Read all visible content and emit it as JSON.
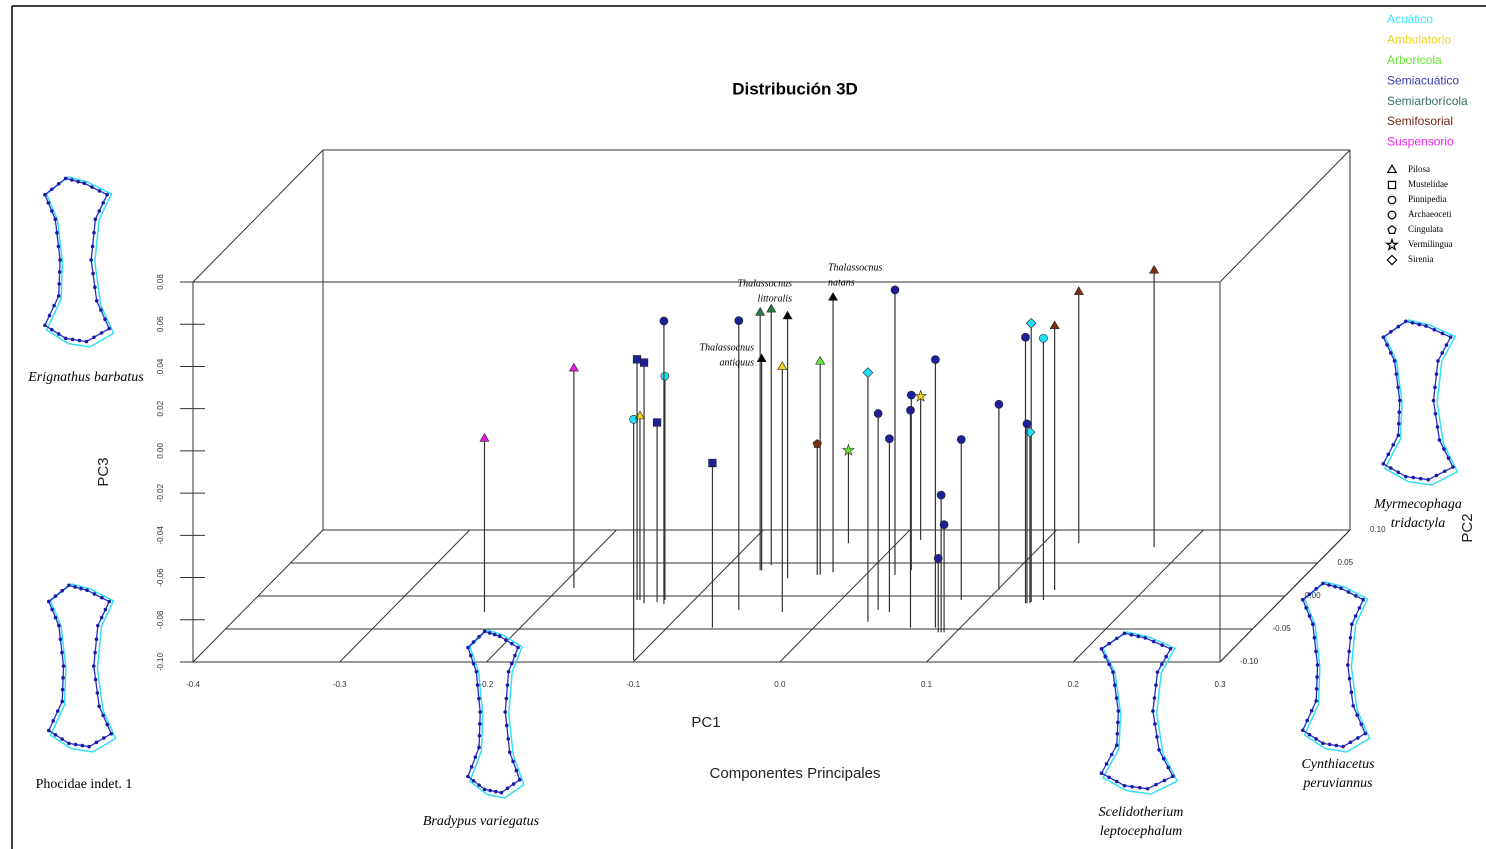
{
  "chart_data": {
    "type": "scatter3d",
    "title": "Distribución 3D",
    "x_label": "PC1",
    "y_label": "PC2",
    "z_label": "PC3",
    "caption": "Componentes Principales",
    "xlim": [
      -0.4,
      0.3
    ],
    "ylim": [
      -0.1,
      0.1
    ],
    "zlim": [
      -0.1,
      0.08
    ],
    "xticks": [
      -0.4,
      -0.3,
      -0.2,
      -0.1,
      {
        "value": 0,
        "label": "0.0"
      },
      0.1,
      0.2,
      0.3
    ],
    "yticks": [
      {
        "value": -0.1,
        "label": "-0.10"
      },
      -0.05,
      {
        "value": 0,
        "label": "0.00"
      },
      0.05,
      {
        "value": 0.1,
        "label": "0.10"
      }
    ],
    "zticks": [
      {
        "value": -0.1,
        "label": "-0.10"
      },
      -0.08,
      -0.06,
      -0.04,
      -0.02,
      {
        "value": 0,
        "label": "0.00"
      },
      0.02,
      0.04,
      0.06,
      0.08
    ],
    "series": [
      {
        "name": "Acuático",
        "color": "#22e0f5",
        "x": [
          -0.12,
          -0.101,
          0.138,
          0.033,
          0.131,
          0.131
        ],
        "y": [
          -0.006,
          -0.097,
          -0.006,
          -0.039,
          -0.009,
          -0.011
        ],
        "z": [
          0.006,
          0.014,
          0.024,
          0.018,
          0.032,
          -0.019
        ],
        "markers": [
          "circle",
          "circle",
          "circle",
          "diamond",
          "diamond",
          "diamond"
        ]
      },
      {
        "name": "Ambulatorio",
        "color": "#f2d21a",
        "x": [
          -0.137,
          -0.032,
          0.014
        ],
        "y": [
          -0.006,
          -0.024,
          0.085
        ],
        "z": [
          -0.013,
          0.016,
          -0.032
        ],
        "markers": [
          "triangle",
          "triangle",
          "star"
        ]
      },
      {
        "name": "Arborícola",
        "color": "#66e633",
        "x": [
          -0.031,
          -0.033
        ],
        "y": [
          0.032,
          0.08
        ],
        "z": [
          0.001,
          -0.056
        ],
        "markers": [
          "triangle",
          "star"
        ]
      },
      {
        "name": "Semiacuático",
        "color": "#1f1f9a",
        "x": [
          -0.139,
          -0.132,
          -0.124,
          -0.069,
          -0.118,
          -0.063,
          0.02,
          0.032,
          0.041,
          0.028,
          0.066,
          0.083,
          0.082,
          0.09,
          0.092,
          0.088,
          0.101,
          0.128,
          0.129
        ],
        "y": [
          -0.006,
          -0.011,
          -0.009,
          -0.048,
          -0.012,
          -0.021,
          0.032,
          -0.021,
          -0.024,
          0.039,
          -0.048,
          -0.048,
          -0.006,
          -0.055,
          -0.055,
          -0.055,
          0.009,
          -0.011,
          -0.011
        ],
        "z": [
          0.014,
          0.014,
          -0.015,
          -0.022,
          0.034,
          0.037,
          0.035,
          -0.007,
          -0.018,
          -0.017,
          0.003,
          0.027,
          -0.024,
          -0.035,
          -0.049,
          -0.065,
          -0.012,
          0.026,
          -0.015
        ],
        "markers": [
          "square",
          "square",
          "square",
          "square",
          "circle",
          "circle",
          "circle",
          "circle",
          "circle",
          "circle",
          "circle",
          "circle",
          "circle",
          "circle",
          "circle",
          "circle",
          "circle",
          "circle",
          "circle"
        ]
      },
      {
        "name": "Semiarborícola",
        "color": "#2b7a4b",
        "x": [
          -0.075,
          -0.071
        ],
        "y": [
          0.039,
          0.047
        ],
        "z": [
          0.022,
          0.021
        ],
        "markers": [
          "triangle",
          "triangle"
        ]
      },
      {
        "name": "Semifosorial",
        "color": "#7a2f10",
        "x": [
          -0.033,
          0.139,
          0.124,
          0.178
        ],
        "y": [
          0.032,
          0.009,
          0.08,
          0.074
        ],
        "z": [
          -0.038,
          0.025,
          0.019,
          0.031
        ],
        "markers": [
          "pentagon",
          "triangle",
          "triangle",
          "triangle"
        ]
      },
      {
        "name": "Suspensorio",
        "color": "#e619e6",
        "x": [
          -0.235,
          -0.19
        ],
        "y": [
          -0.024,
          0.012
        ],
        "z": [
          -0.018,
          0.004
        ],
        "markers": [
          "triangle",
          "triangle"
        ]
      },
      {
        "color": "#000000",
        "x": [
          -0.074,
          -0.051,
          -0.024
        ],
        "y": [
          0.039,
          0.027,
          0.036
        ],
        "z": [
          0.0,
          0.024,
          0.03
        ],
        "markers": [
          "triangle",
          "triangle",
          "triangle"
        ]
      }
    ],
    "legend_colors": [
      "#33e6ff",
      "#f2d21a",
      "#66e633",
      "#3a3ab0",
      "#3a6e66",
      "#6e2a1a",
      "#ee22ee"
    ],
    "clade_legend": [
      {
        "name": "Pilosa",
        "marker": "triangle"
      },
      {
        "name": "Mustelidae",
        "marker": "square"
      },
      {
        "name": "Pinnipedia",
        "marker": "circle"
      },
      {
        "name": "Archaeoceti",
        "marker": "gear"
      },
      {
        "name": "Cingulata",
        "marker": "pentagon"
      },
      {
        "name": "Vermilingua",
        "marker": "star"
      },
      {
        "name": "Sirenia",
        "marker": "diamond"
      }
    ],
    "annotations": [
      {
        "lines": [
          "Thalassocnus",
          "littoralis"
        ]
      },
      {
        "lines": [
          "Thalassocnus",
          "natans"
        ]
      },
      {
        "lines": [
          "Thalassocnus",
          "antiquus"
        ]
      }
    ]
  },
  "specimens": [
    {
      "lines": [
        "Erignathus barbatus"
      ]
    },
    {
      "lines": [
        "Phocidae indet. 1"
      ]
    },
    {
      "lines": [
        "Bradypus variegatus"
      ]
    },
    {
      "lines": [
        "Scelidotherium",
        "leptocephalum"
      ]
    },
    {
      "lines": [
        "Cynthiacetus",
        "peruviannus"
      ]
    },
    {
      "lines": [
        "Myrmecophaga",
        "tridactyla"
      ]
    }
  ]
}
